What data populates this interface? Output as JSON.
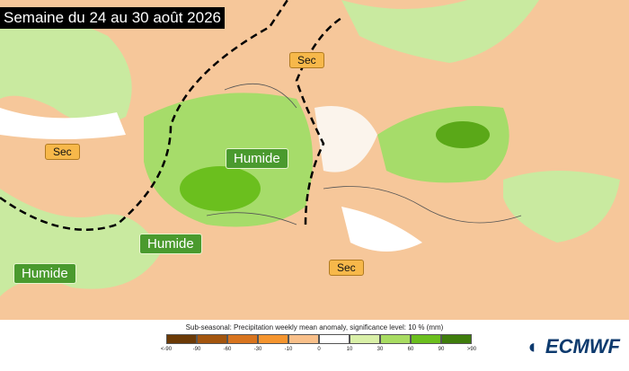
{
  "title": "Semaine du 24 au 30 août 2026",
  "labels": [
    "Sec",
    "Sec",
    "Sec",
    "Humide",
    "Humide",
    "Humide"
  ],
  "legend": {
    "caption": "Sub-seasonal: Precipitation weekly mean anomaly, significance level: 10 % (mm)",
    "ticks": [
      "<-90",
      "-90",
      "-60",
      "-30",
      "-10",
      "0",
      "10",
      "30",
      "60",
      "90",
      ">90"
    ],
    "colors": [
      "#6b3a06",
      "#a3550e",
      "#d8741e",
      "#f5952f",
      "#f9c08a",
      "#ffffff",
      "#d9f0a8",
      "#a8dc62",
      "#6bbf1e",
      "#3f7d0c"
    ]
  },
  "logo": "ECMWF"
}
